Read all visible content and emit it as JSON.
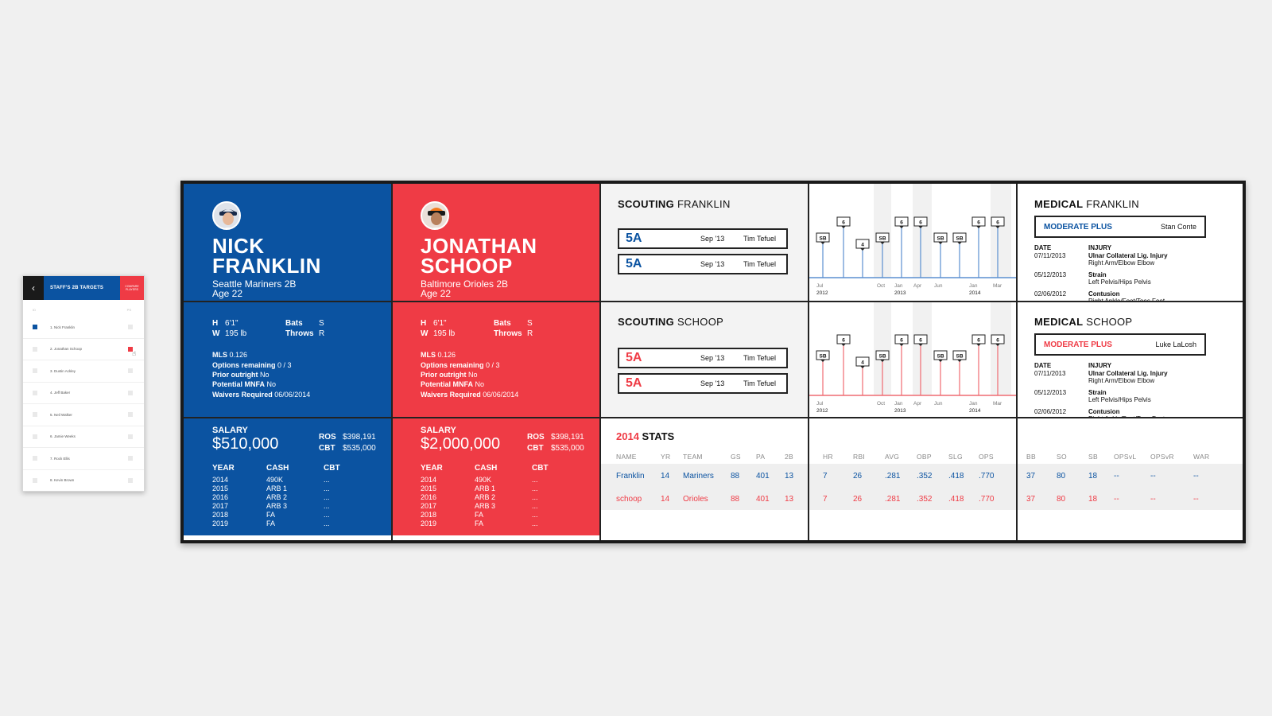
{
  "tablet": {
    "title": "STAFF'S 2B TARGETS",
    "button": "COMPARE PLAYERS",
    "col_left": "ID",
    "col_right": "PS",
    "items": [
      "1. Nick Franklin",
      "2. Jonathan Schoop",
      "3. Dustin Ackley",
      "4. Jeff Baker",
      "5. Neil Walker",
      "6. Jamie Weeks",
      "7. Rock Ellis",
      "8. Kevin Brown"
    ]
  },
  "players": [
    {
      "first": "NICK",
      "last": "FRANKLIN",
      "team_pos": "Seattle Mariners  2B",
      "age": "Age 22",
      "h_label": "H",
      "h": "6'1\"",
      "w_label": "W",
      "w": "195 lb",
      "bats_label": "Bats",
      "bats": "S",
      "throws_label": "Throws",
      "throws": "R",
      "mls_label": "MLS",
      "mls": "0.126",
      "options_label": "Options remaining",
      "options": "0 / 3",
      "prior_label": "Prior outright",
      "prior": "No",
      "mnfa_label": "Potential MNFA",
      "mnfa": "No",
      "waivers_label": "Waivers Required",
      "waivers": "06/06/2014",
      "salary_label": "SALARY",
      "salary": "$510,000",
      "ros_label": "ROS",
      "ros": "$398,191",
      "cbt_label": "CBT",
      "cbt": "$535,000",
      "table_headers": [
        "YEAR",
        "CASH",
        "CBT"
      ],
      "years": [
        [
          "2014",
          "490K",
          "..."
        ],
        [
          "2015",
          "ARB 1",
          "..."
        ],
        [
          "2016",
          "ARB 2",
          "..."
        ],
        [
          "2017",
          "ARB 3",
          "..."
        ],
        [
          "2018",
          "FA",
          "..."
        ],
        [
          "2019",
          "FA",
          "..."
        ]
      ]
    },
    {
      "first": "JONATHAN",
      "last": "SCHOOP",
      "team_pos": "Baltimore Orioles  2B",
      "age": "Age 22",
      "h_label": "H",
      "h": "6'1\"",
      "w_label": "W",
      "w": "195 lb",
      "bats_label": "Bats",
      "bats": "S",
      "throws_label": "Throws",
      "throws": "R",
      "mls_label": "MLS",
      "mls": "0.126",
      "options_label": "Options remaining",
      "options": "0 / 3",
      "prior_label": "Prior outright",
      "prior": "No",
      "mnfa_label": "Potential MNFA",
      "mnfa": "No",
      "waivers_label": "Waivers Required",
      "waivers": "06/06/2014",
      "salary_label": "SALARY",
      "salary": "$2,000,000",
      "ros_label": "ROS",
      "ros": "$398,191",
      "cbt_label": "CBT",
      "cbt": "$535,000",
      "table_headers": [
        "YEAR",
        "CASH",
        "CBT"
      ],
      "years": [
        [
          "2014",
          "490K",
          "..."
        ],
        [
          "2015",
          "ARB 1",
          "..."
        ],
        [
          "2016",
          "ARB 2",
          "..."
        ],
        [
          "2017",
          "ARB 3",
          "..."
        ],
        [
          "2018",
          "FA",
          "..."
        ],
        [
          "2019",
          "FA",
          "..."
        ]
      ]
    }
  ],
  "scouting": [
    {
      "title_bold": "SCOUTING",
      "title_name": "FRANKLIN",
      "reports": [
        {
          "grade": "5A",
          "date": "Sep '13",
          "scout": "Tim Tefuel"
        },
        {
          "grade": "5A",
          "date": "Sep '13",
          "scout": "Tim Tefuel"
        }
      ]
    },
    {
      "title_bold": "SCOUTING",
      "title_name": "SCHOOP",
      "reports": [
        {
          "grade": "5A",
          "date": "Sep '13",
          "scout": "Tim Tefuel"
        },
        {
          "grade": "5A",
          "date": "Sep '13",
          "scout": "Tim Tefuel"
        }
      ]
    }
  ],
  "timeline": {
    "x_labels": [
      [
        "Jul",
        "2012"
      ],
      [
        "Oct",
        ""
      ],
      [
        "Jan",
        "2013"
      ],
      [
        "Apr",
        ""
      ],
      [
        "Jun",
        ""
      ],
      [
        "Jan",
        "2014"
      ],
      [
        "Mar",
        ""
      ]
    ],
    "markers": [
      "SB",
      "6",
      "4",
      "SB",
      "6",
      "6",
      "SB",
      "SB",
      "6",
      "6"
    ],
    "colors": {
      "franklin": "#5b8fd0",
      "schoop": "#ef6b72"
    }
  },
  "medical": [
    {
      "title_bold": "MEDICAL",
      "title_name": "FRANKLIN",
      "status": "MODERATE PLUS",
      "doctor": "Stan Conte",
      "headers": [
        "DATE",
        "INJURY"
      ],
      "rows": [
        [
          "07/11/2013",
          "Ulnar Collateral Lig. Injury",
          "Right Arm/Elbow Elbow"
        ],
        [
          "05/12/2013",
          "Strain",
          "Left Pelvis/Hips Pelvis"
        ],
        [
          "02/06/2012",
          "Contusion",
          "Right Ankle/Foot/Toes Foot"
        ]
      ]
    },
    {
      "title_bold": "MEDICAL",
      "title_name": "SCHOOP",
      "status": "MODERATE PLUS",
      "doctor": "Luke LaLosh",
      "headers": [
        "DATE",
        "INJURY"
      ],
      "rows": [
        [
          "07/11/2013",
          "Ulnar Collateral Lig. Injury",
          "Right Arm/Elbow Elbow"
        ],
        [
          "05/12/2013",
          "Strain",
          "Left Pelvis/Hips Pelvis"
        ],
        [
          "02/06/2012",
          "Contusion",
          "Right Ankle/Foot/Toes Foot"
        ]
      ]
    }
  ],
  "stats": {
    "title_year": "2014",
    "title": "STATS",
    "headers": [
      "NAME",
      "YR",
      "TEAM",
      "GS",
      "PA",
      "2B",
      "HR",
      "RBI",
      "AVG",
      "OBP",
      "SLG",
      "OPS",
      "BB",
      "SO",
      "SB",
      "OPSvL",
      "OPSvR",
      "WAR"
    ],
    "rows": [
      [
        "Franklin",
        "14",
        "Mariners",
        "88",
        "401",
        "13",
        "7",
        "26",
        ".281",
        ".352",
        ".418",
        ".770",
        "37",
        "80",
        "18",
        "--",
        "--",
        "--"
      ],
      [
        "schoop",
        "14",
        "Orioles",
        "88",
        "401",
        "13",
        "7",
        "26",
        ".281",
        ".352",
        ".418",
        ".770",
        "37",
        "80",
        "18",
        "--",
        "--",
        "--"
      ]
    ],
    "colors": {
      "blue": "#0b53a1",
      "red": "#ef3b45"
    }
  }
}
